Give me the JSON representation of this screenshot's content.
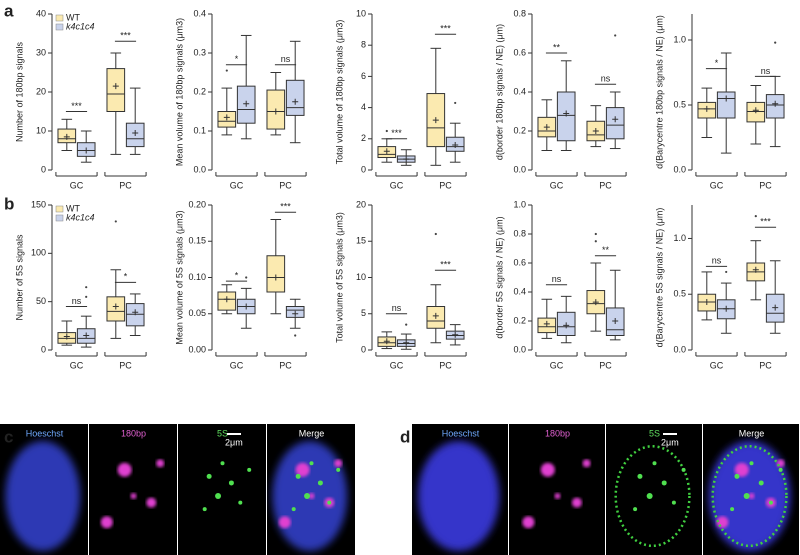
{
  "panel_labels": [
    "a",
    "b"
  ],
  "chart_data": [
    {
      "type": "box",
      "ylabel": "Number of 180bp signals",
      "legend": true,
      "categories": [
        "GC",
        "PC"
      ],
      "ylim": [
        0,
        40
      ],
      "yticks": [
        0,
        10,
        20,
        30,
        40
      ],
      "series": [
        {
          "name": "WT",
          "color": "#fbeab0",
          "stats": [
            {
              "whislo": 5,
              "q1": 7,
              "med": 8,
              "q3": 10.5,
              "whishi": 13,
              "mean": 8.5,
              "fliers": []
            },
            {
              "whislo": 4,
              "q1": 15,
              "med": 19.5,
              "q3": 26,
              "whishi": 30,
              "mean": 21.5,
              "fliers": []
            }
          ]
        },
        {
          "name": "k4c1c4",
          "color": "#c9d3ec",
          "stats": [
            {
              "whislo": 2,
              "q1": 3.5,
              "med": 5,
              "q3": 7,
              "whishi": 10,
              "mean": 5,
              "fliers": []
            },
            {
              "whislo": 4,
              "q1": 6,
              "med": 8,
              "q3": 12,
              "whishi": 21,
              "mean": 9.5,
              "fliers": []
            }
          ]
        }
      ],
      "brackets": [
        {
          "label": "***",
          "y": 15
        },
        {
          "label": "***",
          "y": 33
        }
      ]
    },
    {
      "type": "box",
      "ylabel": "Mean volume of 180bp signals (μm3)",
      "legend": false,
      "categories": [
        "GC",
        "PC"
      ],
      "ylim": [
        0,
        0.4
      ],
      "yticks": [
        {
          "value": 0,
          "label": "0.0"
        },
        0.1,
        0.2,
        0.3,
        0.4
      ],
      "series": [
        {
          "name": "WT",
          "color": "#fbeab0",
          "stats": [
            {
              "whislo": 0.09,
              "q1": 0.11,
              "med": 0.125,
              "q3": 0.15,
              "whishi": 0.21,
              "mean": 0.135,
              "fliers": [
                0.255
              ]
            },
            {
              "whislo": 0.09,
              "q1": 0.105,
              "med": 0.15,
              "q3": 0.205,
              "whishi": 0.25,
              "mean": 0.15,
              "fliers": []
            }
          ]
        },
        {
          "name": "k4c1c4",
          "color": "#c9d3ec",
          "stats": [
            {
              "whislo": 0.08,
              "q1": 0.12,
              "med": 0.155,
              "q3": 0.215,
              "whishi": 0.345,
              "mean": 0.17,
              "fliers": []
            },
            {
              "whislo": 0.07,
              "q1": 0.14,
              "med": 0.16,
              "q3": 0.23,
              "whishi": 0.33,
              "mean": 0.175,
              "fliers": []
            }
          ]
        }
      ],
      "brackets": [
        {
          "label": "*",
          "y": 0.27
        },
        {
          "label": "ns",
          "y": 0.27
        }
      ]
    },
    {
      "type": "box",
      "ylabel": "Total volume of 180bp signals (μm3)",
      "legend": false,
      "categories": [
        "GC",
        "PC"
      ],
      "ylim": [
        0,
        10
      ],
      "yticks": [
        0,
        2,
        4,
        6,
        8,
        10
      ],
      "series": [
        {
          "name": "WT",
          "color": "#fbeab0",
          "stats": [
            {
              "whislo": 0.5,
              "q1": 0.8,
              "med": 1.0,
              "q3": 1.5,
              "whishi": 2.0,
              "mean": 1.2,
              "fliers": [
                2.5
              ]
            },
            {
              "whislo": 0.3,
              "q1": 1.5,
              "med": 2.7,
              "q3": 4.9,
              "whishi": 7.8,
              "mean": 3.2,
              "fliers": []
            }
          ]
        },
        {
          "name": "k4c1c4",
          "color": "#c9d3ec",
          "stats": [
            {
              "whislo": 0.3,
              "q1": 0.5,
              "med": 0.7,
              "q3": 0.9,
              "whishi": 1.3,
              "mean": 0.7,
              "fliers": []
            },
            {
              "whislo": 0.5,
              "q1": 1.2,
              "med": 1.5,
              "q3": 2.1,
              "whishi": 3.0,
              "mean": 1.6,
              "fliers": [
                4.3
              ]
            }
          ]
        }
      ],
      "brackets": [
        {
          "label": "***",
          "y": 2.0
        },
        {
          "label": "***",
          "y": 8.7
        }
      ]
    },
    {
      "type": "box",
      "ylabel": "d(border 180bp signals / NE) (μm)",
      "legend": false,
      "categories": [
        "GC",
        "PC"
      ],
      "ylim": [
        0,
        0.8
      ],
      "yticks": [
        {
          "value": 0,
          "label": "0.0"
        },
        0.2,
        0.4,
        0.6,
        0.8
      ],
      "series": [
        {
          "name": "WT",
          "color": "#fbeab0",
          "stats": [
            {
              "whislo": 0.1,
              "q1": 0.17,
              "med": 0.2,
              "q3": 0.27,
              "whishi": 0.36,
              "mean": 0.22,
              "fliers": []
            },
            {
              "whislo": 0.12,
              "q1": 0.15,
              "med": 0.18,
              "q3": 0.25,
              "whishi": 0.33,
              "mean": 0.2,
              "fliers": []
            }
          ]
        },
        {
          "name": "k4c1c4",
          "color": "#c9d3ec",
          "stats": [
            {
              "whislo": 0.1,
              "q1": 0.15,
              "med": 0.28,
              "q3": 0.4,
              "whishi": 0.56,
              "mean": 0.29,
              "fliers": []
            },
            {
              "whislo": 0.11,
              "q1": 0.16,
              "med": 0.23,
              "q3": 0.32,
              "whishi": 0.4,
              "mean": 0.26,
              "fliers": [
                0.69
              ]
            }
          ]
        }
      ],
      "brackets": [
        {
          "label": "**",
          "y": 0.6
        },
        {
          "label": "ns",
          "y": 0.44
        }
      ]
    },
    {
      "type": "box",
      "ylabel": "d(Barycentre 180bp signals / NE) (μm)",
      "legend": false,
      "categories": [
        "GC",
        "PC"
      ],
      "ylim": [
        0,
        1.2
      ],
      "yticks": [
        {
          "value": 0,
          "label": "0.0"
        },
        0.5,
        {
          "value": 1,
          "label": "1.0"
        }
      ],
      "series": [
        {
          "name": "WT",
          "color": "#fbeab0",
          "stats": [
            {
              "whislo": 0.25,
              "q1": 0.4,
              "med": 0.47,
              "q3": 0.52,
              "whishi": 0.63,
              "mean": 0.47,
              "fliers": []
            },
            {
              "whislo": 0.2,
              "q1": 0.37,
              "med": 0.45,
              "q3": 0.52,
              "whishi": 0.65,
              "mean": 0.46,
              "fliers": []
            }
          ]
        },
        {
          "name": "k4c1c4",
          "color": "#c9d3ec",
          "stats": [
            {
              "whislo": 0.13,
              "q1": 0.4,
              "med": 0.55,
              "q3": 0.6,
              "whishi": 0.9,
              "mean": 0.55,
              "fliers": []
            },
            {
              "whislo": 0.18,
              "q1": 0.4,
              "med": 0.5,
              "q3": 0.58,
              "whishi": 0.72,
              "mean": 0.51,
              "fliers": [
                0.98
              ]
            }
          ]
        }
      ],
      "brackets": [
        {
          "label": "*",
          "y": 0.78
        },
        {
          "label": "ns",
          "y": 0.72
        }
      ]
    },
    {
      "type": "box",
      "ylabel": "Number of 5S signals",
      "legend": true,
      "categories": [
        "GC",
        "PC"
      ],
      "ylim": [
        0,
        150
      ],
      "yticks": [
        0,
        50,
        100,
        150
      ],
      "series": [
        {
          "name": "WT",
          "color": "#fbeab0",
          "stats": [
            {
              "whislo": 5,
              "q1": 7,
              "med": 12,
              "q3": 18,
              "whishi": 30,
              "mean": 14,
              "fliers": []
            },
            {
              "whislo": 12,
              "q1": 30,
              "med": 40,
              "q3": 55,
              "whishi": 83,
              "mean": 45,
              "fliers": [
                133
              ]
            }
          ]
        },
        {
          "name": "k4c1c4",
          "color": "#c9d3ec",
          "stats": [
            {
              "whislo": 3,
              "q1": 7,
              "med": 12,
              "q3": 22,
              "whishi": 35,
              "mean": 15,
              "fliers": [
                55,
                65
              ]
            },
            {
              "whislo": 15,
              "q1": 25,
              "med": 37,
              "q3": 48,
              "whishi": 58,
              "mean": 39,
              "fliers": []
            }
          ]
        }
      ],
      "brackets": [
        {
          "label": "ns",
          "y": 45
        },
        {
          "label": "*",
          "y": 70
        }
      ]
    },
    {
      "type": "box",
      "ylabel": "Mean volume of 5S signals (μm3)",
      "legend": false,
      "categories": [
        "GC",
        "PC"
      ],
      "ylim": [
        0,
        0.2
      ],
      "yticks": [
        {
          "value": 0,
          "label": "0.00"
        },
        0.05,
        {
          "value": 0.1,
          "label": "0.10"
        },
        0.15,
        {
          "value": 0.2,
          "label": "0.20"
        }
      ],
      "series": [
        {
          "name": "WT",
          "color": "#fbeab0",
          "stats": [
            {
              "whislo": 0.05,
              "q1": 0.055,
              "med": 0.07,
              "q3": 0.08,
              "whishi": 0.09,
              "mean": 0.07,
              "fliers": []
            },
            {
              "whislo": 0.05,
              "q1": 0.08,
              "med": 0.1,
              "q3": 0.13,
              "whishi": 0.18,
              "mean": 0.1,
              "fliers": []
            }
          ]
        },
        {
          "name": "k4c1c4",
          "color": "#c9d3ec",
          "stats": [
            {
              "whislo": 0.03,
              "q1": 0.05,
              "med": 0.06,
              "q3": 0.07,
              "whishi": 0.085,
              "mean": 0.06,
              "fliers": [
                0.1
              ]
            },
            {
              "whislo": 0.03,
              "q1": 0.045,
              "med": 0.055,
              "q3": 0.06,
              "whishi": 0.07,
              "mean": 0.05,
              "fliers": [
                0.02
              ]
            }
          ]
        }
      ],
      "brackets": [
        {
          "label": "*",
          "y": 0.095
        },
        {
          "label": "***",
          "y": 0.19
        }
      ]
    },
    {
      "type": "box",
      "ylabel": "Total volume of 5S signals (μm3)",
      "legend": false,
      "categories": [
        "GC",
        "PC"
      ],
      "ylim": [
        0,
        20
      ],
      "yticks": [
        0,
        5,
        10,
        15,
        20
      ],
      "series": [
        {
          "name": "WT",
          "color": "#fbeab0",
          "stats": [
            {
              "whislo": 0.2,
              "q1": 0.5,
              "med": 1.0,
              "q3": 1.8,
              "whishi": 2.5,
              "mean": 1.2,
              "fliers": []
            },
            {
              "whislo": 1,
              "q1": 3,
              "med": 4,
              "q3": 6,
              "whishi": 9,
              "mean": 4.7,
              "fliers": [
                16
              ]
            }
          ]
        },
        {
          "name": "k4c1c4",
          "color": "#c9d3ec",
          "stats": [
            {
              "whislo": 0.1,
              "q1": 0.5,
              "med": 0.9,
              "q3": 1.4,
              "whishi": 2.2,
              "mean": 1.0,
              "fliers": [
                3.5
              ]
            },
            {
              "whislo": 0.7,
              "q1": 1.5,
              "med": 2,
              "q3": 2.6,
              "whishi": 3.5,
              "mean": 2.1,
              "fliers": []
            }
          ]
        }
      ],
      "brackets": [
        {
          "label": "ns",
          "y": 5
        },
        {
          "label": "***",
          "y": 11
        }
      ]
    },
    {
      "type": "box",
      "ylabel": "d(border 5S signals / NE) (μm)",
      "legend": false,
      "categories": [
        "GC",
        "PC"
      ],
      "ylim": [
        0,
        1
      ],
      "yticks": [
        {
          "value": 0,
          "label": "0.0"
        },
        0.2,
        0.4,
        0.6,
        0.8,
        {
          "value": 1,
          "label": "1.0"
        }
      ],
      "series": [
        {
          "name": "WT",
          "color": "#fbeab0",
          "stats": [
            {
              "whislo": 0.08,
              "q1": 0.12,
              "med": 0.16,
              "q3": 0.22,
              "whishi": 0.35,
              "mean": 0.18,
              "fliers": []
            },
            {
              "whislo": 0.13,
              "q1": 0.25,
              "med": 0.32,
              "q3": 0.41,
              "whishi": 0.6,
              "mean": 0.33,
              "fliers": [
                0.75,
                0.8
              ]
            }
          ]
        },
        {
          "name": "k4c1c4",
          "color": "#c9d3ec",
          "stats": [
            {
              "whislo": 0.05,
              "q1": 0.1,
              "med": 0.16,
              "q3": 0.26,
              "whishi": 0.37,
              "mean": 0.17,
              "fliers": []
            },
            {
              "whislo": 0.07,
              "q1": 0.1,
              "med": 0.14,
              "q3": 0.29,
              "whishi": 0.55,
              "mean": 0.2,
              "fliers": []
            }
          ]
        }
      ],
      "brackets": [
        {
          "label": "ns",
          "y": 0.45
        },
        {
          "label": "**",
          "y": 0.65
        }
      ]
    },
    {
      "type": "box",
      "ylabel": "d(Barycentre 5S signals / NE) (μm)",
      "legend": false,
      "categories": [
        "GC",
        "PC"
      ],
      "ylim": [
        0,
        1.3
      ],
      "yticks": [
        {
          "value": 0,
          "label": "0.0"
        },
        0.5,
        {
          "value": 1,
          "label": "1.0"
        }
      ],
      "series": [
        {
          "name": "WT",
          "color": "#fbeab0",
          "stats": [
            {
              "whislo": 0.27,
              "q1": 0.35,
              "med": 0.43,
              "q3": 0.5,
              "whishi": 0.7,
              "mean": 0.43,
              "fliers": []
            },
            {
              "whislo": 0.45,
              "q1": 0.62,
              "med": 0.7,
              "q3": 0.78,
              "whishi": 0.98,
              "mean": 0.72,
              "fliers": [
                1.2
              ]
            }
          ]
        },
        {
          "name": "k4c1c4",
          "color": "#c9d3ec",
          "stats": [
            {
              "whislo": 0.15,
              "q1": 0.28,
              "med": 0.37,
              "q3": 0.45,
              "whishi": 0.6,
              "mean": 0.37,
              "fliers": [
                0.7
              ]
            },
            {
              "whislo": 0.15,
              "q1": 0.25,
              "med": 0.33,
              "q3": 0.5,
              "whishi": 0.8,
              "mean": 0.38,
              "fliers": []
            }
          ]
        }
      ],
      "brackets": [
        {
          "label": "ns",
          "y": 0.75
        },
        {
          "label": "***",
          "y": 1.1
        }
      ]
    }
  ],
  "images": [
    {
      "label": "c",
      "channels": [
        "Hoeschst",
        "180bp",
        "5S",
        "Merge"
      ],
      "scale": "2μm"
    },
    {
      "label": "d",
      "channels": [
        "Hoeschst",
        "180bp",
        "5S",
        "Merge"
      ],
      "scale": "2μm"
    }
  ]
}
